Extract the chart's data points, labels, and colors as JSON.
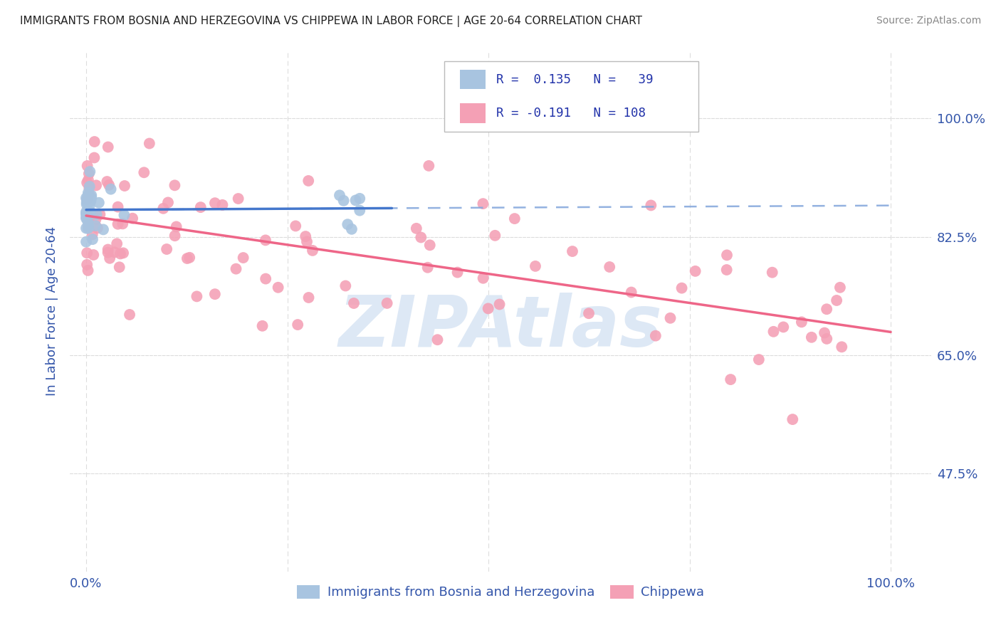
{
  "title": "IMMIGRANTS FROM BOSNIA AND HERZEGOVINA VS CHIPPEWA IN LABOR FORCE | AGE 20-64 CORRELATION CHART",
  "source": "Source: ZipAtlas.com",
  "ylabel": "In Labor Force | Age 20-64",
  "bosnia_color": "#a8c4e0",
  "chippewa_color": "#f4a0b5",
  "bosnia_line_color": "#4477cc",
  "chippewa_line_color": "#ee6688",
  "trendline_dashed_color": "#88aadd",
  "watermark_color": "#dde8f5",
  "background_color": "#ffffff",
  "grid_color": "#dddddd",
  "title_color": "#222222",
  "tick_label_color": "#3355aa",
  "legend_text_color": "#2233aa",
  "y_tick_positions": [
    0.475,
    0.65,
    0.825,
    1.0
  ],
  "y_tick_labels": [
    "47.5%",
    "65.0%",
    "82.5%",
    "100.0%"
  ],
  "x_tick_positions": [
    0.0,
    1.0
  ],
  "x_tick_labels": [
    "0.0%",
    "100.0%"
  ],
  "xlim": [
    -0.02,
    1.05
  ],
  "ylim": [
    0.33,
    1.1
  ],
  "bosnia_R": 0.135,
  "bosnia_N": 39,
  "chippewa_R": -0.191,
  "chippewa_N": 108,
  "bosnia_trend_x_end": 0.38,
  "watermark_text": "ZIPAtlas"
}
